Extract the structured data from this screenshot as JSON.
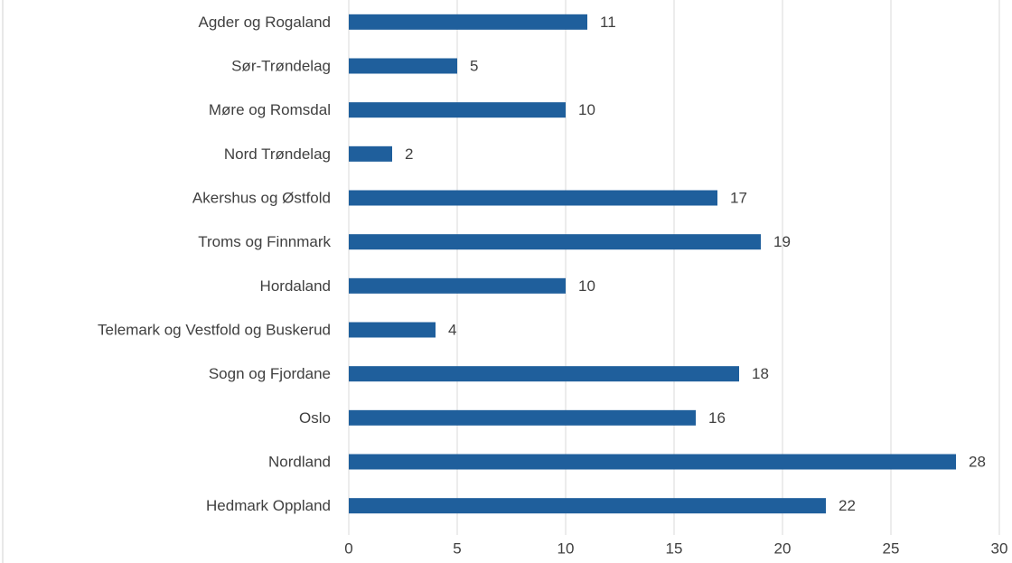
{
  "chart_data": {
    "type": "bar",
    "orientation": "horizontal",
    "categories": [
      "Agder og Rogaland",
      "Sør-Trøndelag",
      "Møre og Romsdal",
      "Nord Trøndelag",
      "Akershus og Østfold",
      "Troms og Finnmark",
      "Hordaland",
      "Telemark og Vestfold og Buskerud",
      "Sogn og Fjordane",
      "Oslo",
      "Nordland",
      "Hedmark Oppland"
    ],
    "values": [
      11,
      5,
      10,
      2,
      17,
      19,
      10,
      4,
      18,
      16,
      28,
      22
    ],
    "color": "#1f5f9c",
    "xlim": [
      0,
      30
    ],
    "xticks": [
      0,
      5,
      10,
      15,
      20,
      25,
      30
    ],
    "grid": true
  }
}
